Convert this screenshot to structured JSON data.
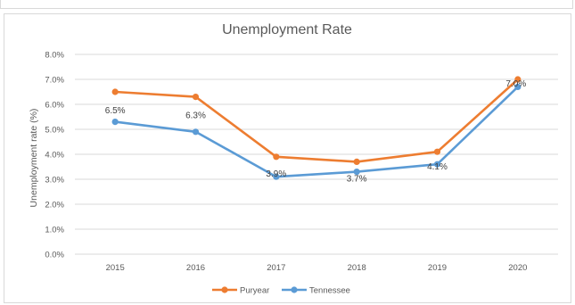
{
  "chart_data": {
    "type": "line",
    "title": "Unemployment Rate",
    "xlabel": "",
    "ylabel": "Unemployment rate (%)",
    "categories": [
      "2015",
      "2016",
      "2017",
      "2018",
      "2019",
      "2020"
    ],
    "ylim": [
      0,
      8
    ],
    "yticks": [
      "0.0%",
      "1.0%",
      "2.0%",
      "3.0%",
      "4.0%",
      "5.0%",
      "6.0%",
      "7.0%",
      "8.0%"
    ],
    "grid": true,
    "legend": "bottom",
    "series": [
      {
        "name": "Puryear",
        "color": "#ed7d31",
        "values": [
          6.5,
          6.3,
          3.9,
          3.7,
          4.1,
          7.0
        ],
        "labels": [
          "6.5%",
          "6.3%",
          "3.9%",
          "3.7%",
          "4.1%",
          "7.0%"
        ]
      },
      {
        "name": "Tennessee",
        "color": "#5b9bd5",
        "values": [
          5.3,
          4.9,
          3.1,
          3.3,
          3.6,
          6.7
        ]
      }
    ]
  }
}
